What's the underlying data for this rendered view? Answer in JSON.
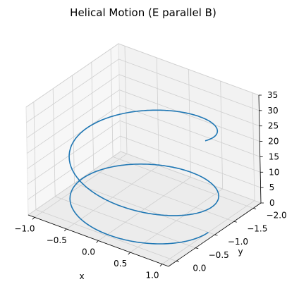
{
  "chart_data": {
    "type": "line3d",
    "title": "Helical Motion (E parallel B)",
    "xlabel": "x",
    "ylabel": "y",
    "zlabel": "",
    "xlim": [
      -1.1,
      1.1
    ],
    "ylim": [
      -2.2,
      0.2
    ],
    "zlim": [
      0,
      35
    ],
    "xticks": [
      "−1.0",
      "−0.5",
      "0.0",
      "0.5",
      "1.0"
    ],
    "xtick_values": [
      -1.0,
      -0.5,
      0.0,
      0.5,
      1.0
    ],
    "yticks": [
      "−2.0",
      "−1.5",
      "−1.0",
      "−0.5",
      "0.0"
    ],
    "ytick_values": [
      -2.0,
      -1.5,
      -1.0,
      -0.5,
      0.0
    ],
    "zticks": [
      "0",
      "5",
      "10",
      "15",
      "20",
      "25",
      "30",
      "35"
    ],
    "ztick_values": [
      0,
      5,
      10,
      15,
      20,
      25,
      30,
      35
    ],
    "grid": true,
    "series": [
      {
        "color": "#1f77b4",
        "parametric": {
          "x": "cos(t)",
          "y": "sin(t) - 1",
          "z": "quadratic in t"
        },
        "t_range": [
          0,
          12.6
        ],
        "z_at_end": 30
      }
    ]
  }
}
